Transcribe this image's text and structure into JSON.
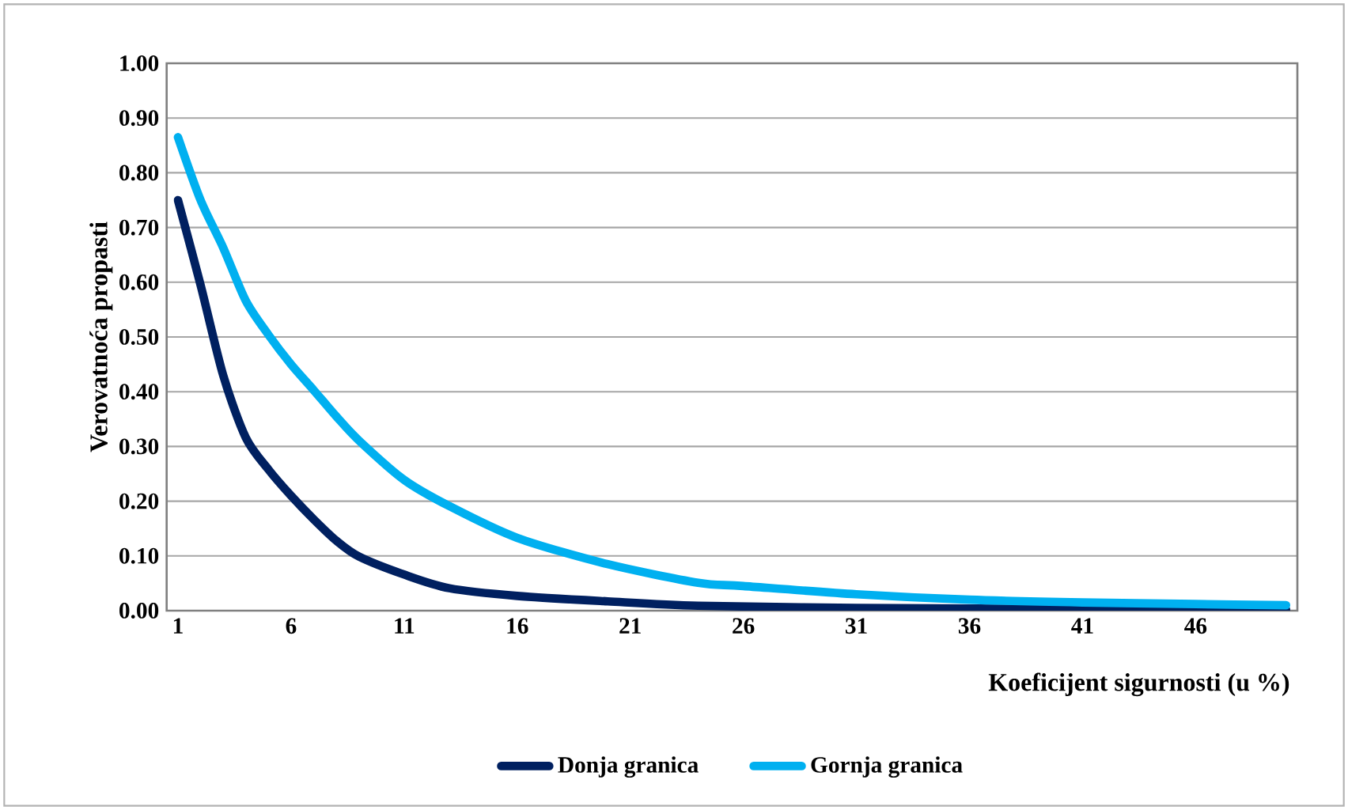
{
  "chart_data": {
    "type": "line",
    "xlabel": "Koeficijent sigurnosti (u %)",
    "ylabel": "Verovatnoća  propasti",
    "xlim": [
      0.5,
      50.5
    ],
    "xticks": [
      1,
      6,
      11,
      16,
      21,
      26,
      31,
      36,
      41,
      46
    ],
    "ylim": [
      0,
      1
    ],
    "yticks": [
      {
        "value": 0,
        "label": "0.00"
      },
      {
        "value": 0.1,
        "label": "0.10"
      },
      {
        "value": 0.2,
        "label": "0.20"
      },
      {
        "value": 0.3,
        "label": "0.30"
      },
      {
        "value": 0.4,
        "label": "0.40"
      },
      {
        "value": 0.5,
        "label": "0.50"
      },
      {
        "value": 0.6,
        "label": "0.60"
      },
      {
        "value": 0.7,
        "label": "0.70"
      },
      {
        "value": 0.8,
        "label": "0.80"
      },
      {
        "value": 0.9,
        "label": "0.90"
      },
      {
        "value": 1,
        "label": "1.00"
      }
    ],
    "grid": "y",
    "legend": "bottom",
    "marker": "none",
    "line_style": "solid",
    "series": [
      {
        "name": "Donja granica",
        "color": "#002060",
        "x": [
          1,
          2,
          3,
          4,
          5,
          6,
          7,
          8,
          9,
          11,
          13,
          16,
          20,
          24,
          31,
          41,
          50
        ],
        "values": [
          0.75,
          0.595,
          0.43,
          0.316,
          0.258,
          0.21,
          0.167,
          0.128,
          0.099,
          0.066,
          0.041,
          0.027,
          0.017,
          0.009,
          0.005,
          0.003,
          0.002
        ]
      },
      {
        "name": "Gornja granica",
        "color": "#00b0f0",
        "x": [
          1,
          2,
          3,
          4,
          5,
          6,
          7,
          8,
          9,
          11,
          13,
          16,
          20,
          24,
          26,
          31,
          36,
          41,
          46,
          50
        ],
        "values": [
          0.865,
          0.75,
          0.663,
          0.566,
          0.504,
          0.45,
          0.403,
          0.355,
          0.311,
          0.239,
          0.191,
          0.133,
          0.085,
          0.051,
          0.045,
          0.03,
          0.02,
          0.015,
          0.012,
          0.01
        ]
      }
    ]
  }
}
